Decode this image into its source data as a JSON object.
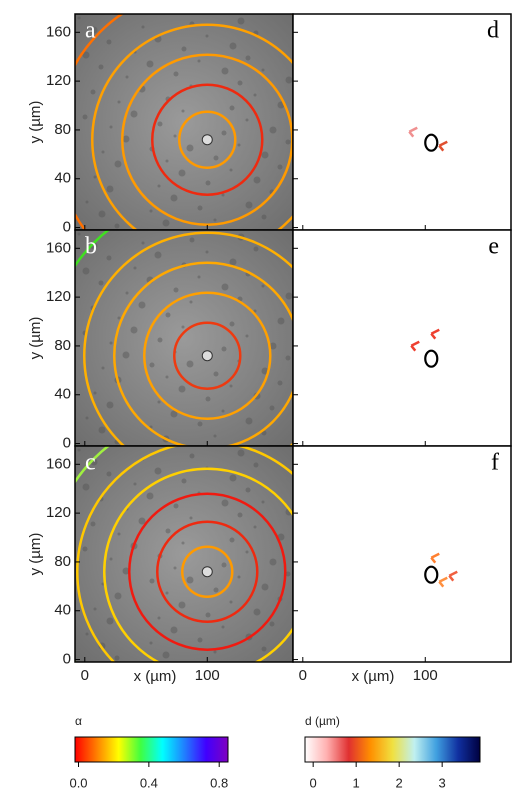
{
  "chart_data": {
    "type": "image-grid",
    "panels": [
      {
        "label": "a"
      },
      {
        "label": "d"
      },
      {
        "label": "b"
      },
      {
        "label": "e"
      },
      {
        "label": "c"
      },
      {
        "label": "f"
      }
    ],
    "xlabel": "x (µm)",
    "ylabel": "y (µm)",
    "xlim": [
      -8,
      170
    ],
    "ylim": [
      -2,
      175
    ],
    "xticks": [
      0,
      100
    ],
    "yticks": [
      0,
      40,
      80,
      120,
      160
    ],
    "colorbars": [
      {
        "title": "α",
        "lim": [
          -0.02,
          0.85
        ],
        "ticks": [
          {
            "value": 0,
            "label": "0.0"
          },
          0.4,
          0.8
        ],
        "colors": [
          "#ff0000",
          "#ff8000",
          "#ffff00",
          "#40ff40",
          "#00ffff",
          "#2080ff",
          "#4000ff",
          "#8000c0"
        ]
      },
      {
        "title": "d (µm)",
        "lim": [
          -0.19,
          3.88
        ],
        "ticks": [
          0,
          1,
          2,
          3
        ],
        "colors": [
          "#ffffff",
          "#ffb0b0",
          "#e03030",
          "#ff9000",
          "#f0e040",
          "#c0f0f0",
          "#40a0e0",
          "#1030a0",
          "#000040"
        ]
      }
    ]
  }
}
